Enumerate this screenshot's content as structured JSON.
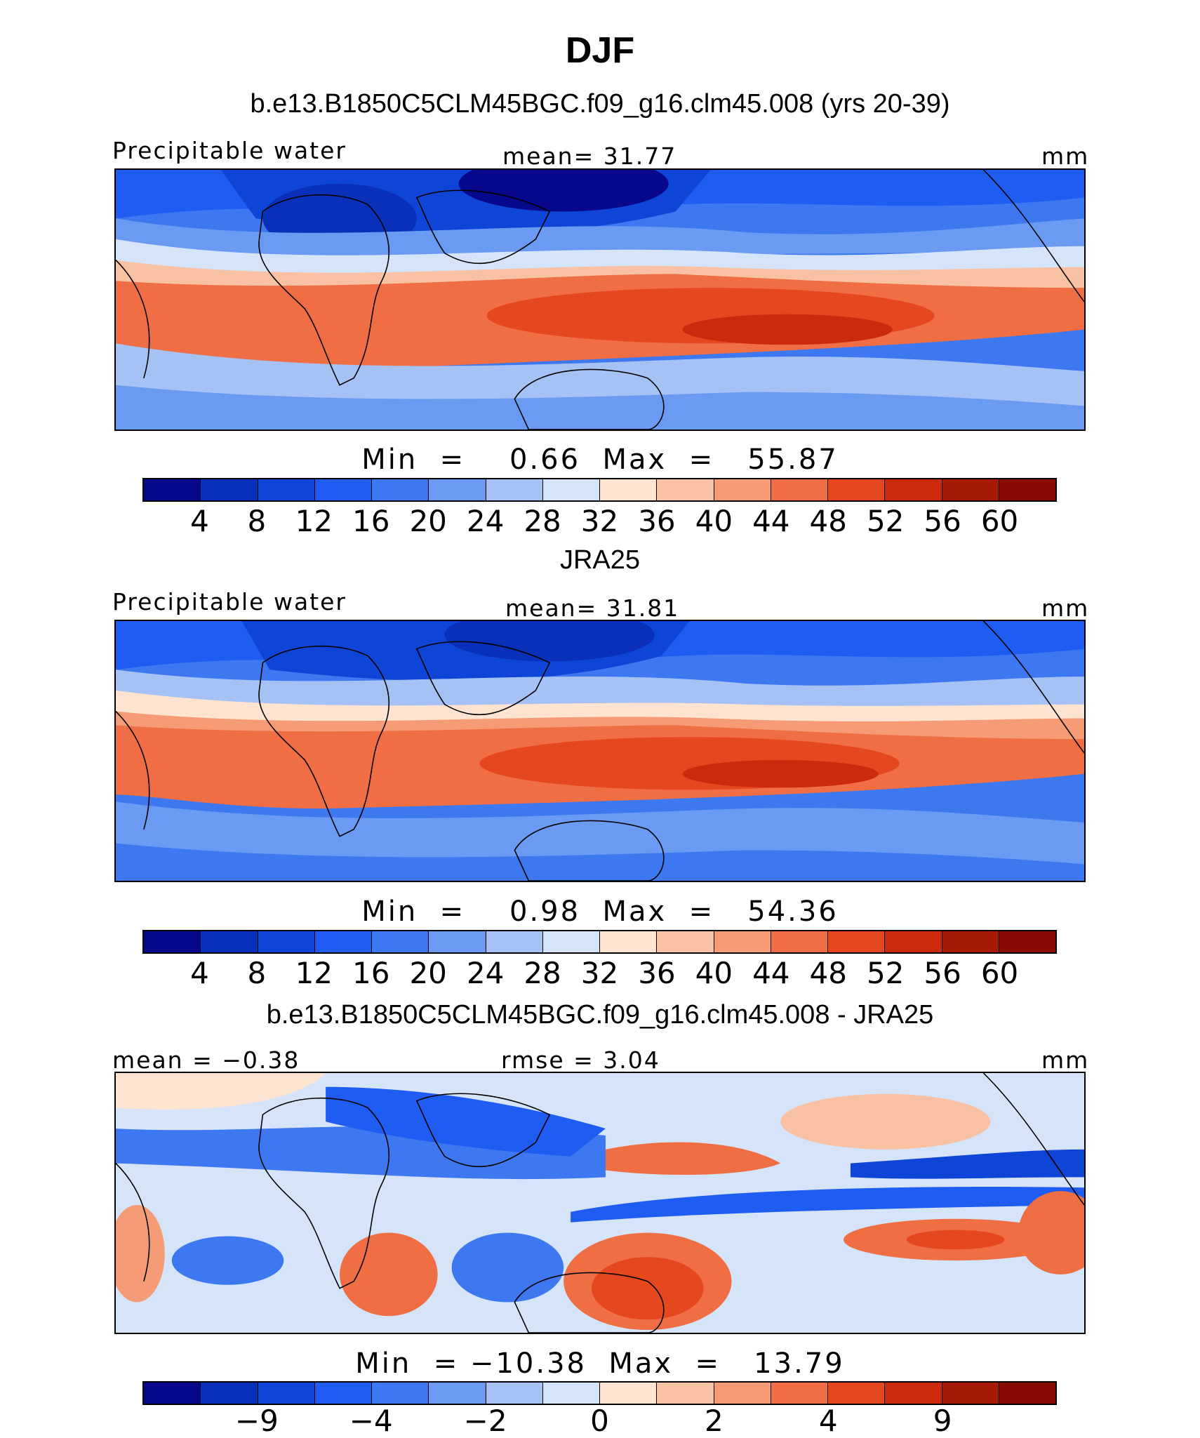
{
  "title": "DJF",
  "panels": [
    {
      "id": "model",
      "header": "b.e13.B1850C5CLM45BGC.f09_g16.clm45.008 (yrs 20-39)",
      "left_label": "Precipitable water",
      "center_label": "mean=   31.77",
      "right_label": "mm",
      "minmax": "Min  =    0.66  Max  =   55.87",
      "ticks": [
        "4",
        "8",
        "12",
        "16",
        "20",
        "24",
        "28",
        "32",
        "36",
        "40",
        "44",
        "48",
        "52",
        "56",
        "60"
      ]
    },
    {
      "id": "obs",
      "header": "JRA25",
      "left_label": "Precipitable water",
      "center_label": "mean=   31.81",
      "right_label": "mm",
      "minmax": "Min  =    0.98  Max  =   54.36",
      "ticks": [
        "4",
        "8",
        "12",
        "16",
        "20",
        "24",
        "28",
        "32",
        "36",
        "40",
        "44",
        "48",
        "52",
        "56",
        "60"
      ]
    },
    {
      "id": "diff",
      "header": "b.e13.B1850C5CLM45BGC.f09_g16.clm45.008 - JRA25",
      "left_label": "mean =  −0.38",
      "center_label": "rmse =    3.04",
      "right_label": "mm",
      "minmax": "Min  = −10.38  Max  =   13.79",
      "ticks": [
        "−9",
        "−4",
        "−2",
        "0",
        "2",
        "4",
        "9"
      ]
    }
  ],
  "colors": {
    "palette": [
      "#08088c",
      "#0a2fb8",
      "#0f45d6",
      "#1f5cf2",
      "#3d78f0",
      "#6b9af2",
      "#a6c2f5",
      "#d6e4fa",
      "#fde3d0",
      "#f9c1a4",
      "#f59c76",
      "#ef6e44",
      "#e5471f",
      "#cc2a0c",
      "#a81a08",
      "#8a0a05"
    ]
  }
}
